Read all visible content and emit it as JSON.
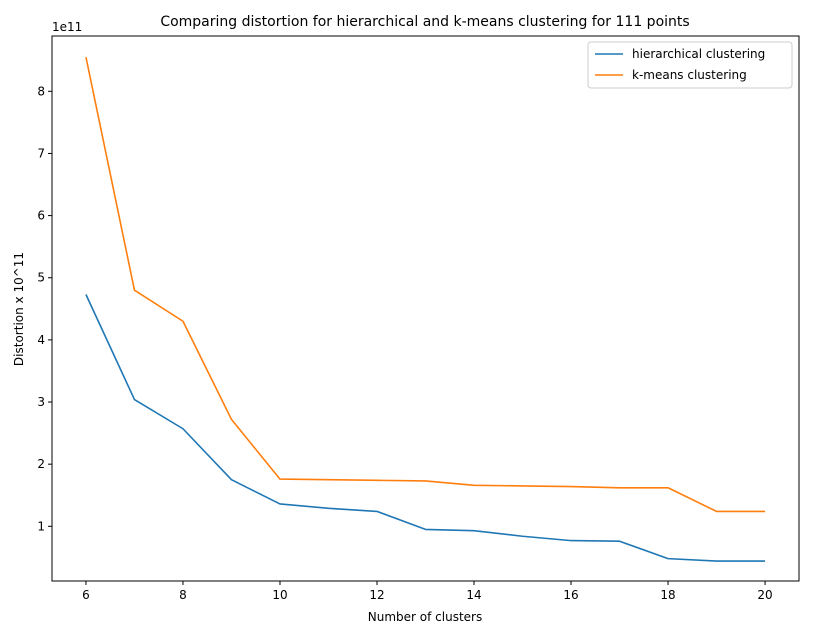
{
  "chart_data": {
    "type": "line",
    "title": "Comparing distortion for hierarchical and k-means clustering for 111 points",
    "xlabel": "Number of clusters",
    "ylabel": "Distortion x 10^11",
    "offset_label": "1e11",
    "x": [
      6,
      7,
      8,
      9,
      10,
      11,
      12,
      13,
      14,
      15,
      16,
      17,
      18,
      19,
      20
    ],
    "xlim": [
      5.3,
      20.7
    ],
    "ylim": [
      0.12,
      8.89
    ],
    "xticks": [
      6,
      8,
      10,
      12,
      14,
      16,
      18,
      20
    ],
    "yticks": [
      1,
      2,
      3,
      4,
      5,
      6,
      7,
      8
    ],
    "grid": false,
    "legend_position": "top-right",
    "series": [
      {
        "name": "hierarchical clustering",
        "color": "#1f77b4",
        "values": [
          4.73,
          3.04,
          2.57,
          1.75,
          1.36,
          1.29,
          1.24,
          0.95,
          0.93,
          0.84,
          0.77,
          0.76,
          0.48,
          0.44,
          0.44
        ]
      },
      {
        "name": "k-means clustering",
        "color": "#ff7f0e",
        "values": [
          8.55,
          4.8,
          4.3,
          2.72,
          1.76,
          1.75,
          1.74,
          1.73,
          1.66,
          1.65,
          1.64,
          1.62,
          1.62,
          1.24,
          1.24
        ]
      }
    ]
  }
}
